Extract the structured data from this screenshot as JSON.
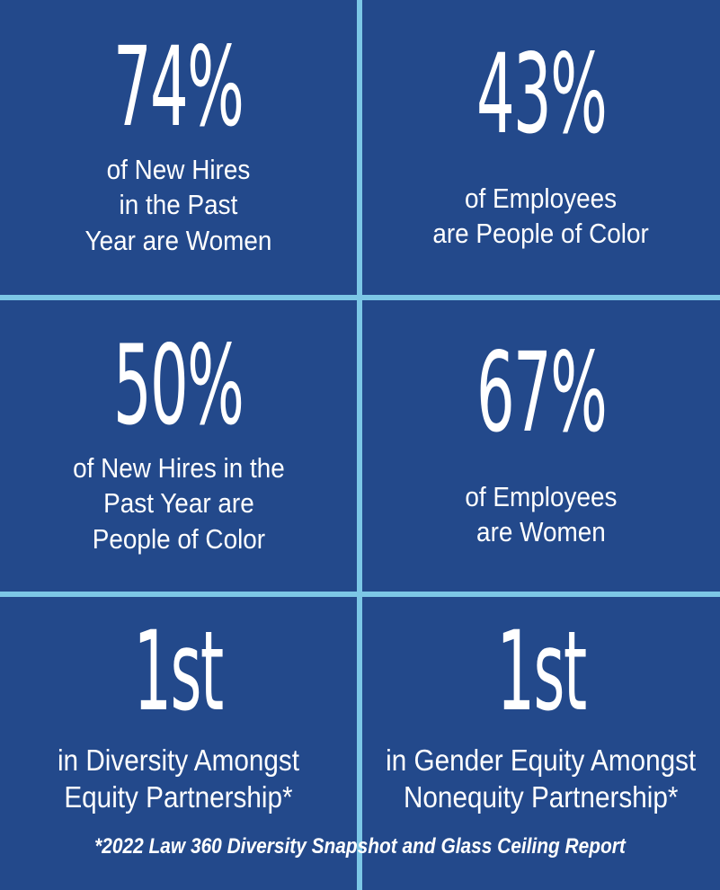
{
  "theme": {
    "background": "#23498B",
    "divider": "#7CC7E6",
    "text": "#FFFFFF"
  },
  "chart_data": {
    "type": "table",
    "items": [
      {
        "value": "74%",
        "label": "of New Hires in the Past Year are Women",
        "label_lines": [
          "of New Hires",
          "in the Past",
          "Year are Women"
        ]
      },
      {
        "value": "43%",
        "label": "of Employees are People of Color",
        "label_lines": [
          "of Employees",
          "are People of Color"
        ]
      },
      {
        "value": "50%",
        "label": "of New Hires in the Past Year are People of Color",
        "label_lines": [
          "of New Hires in the",
          "Past Year are",
          "People of Color"
        ]
      },
      {
        "value": "67%",
        "label": "of Employees are Women",
        "label_lines": [
          "of Employees",
          "are Women"
        ]
      },
      {
        "value": "1st",
        "label": "in Diversity Amongst Equity Partnership*",
        "label_lines": [
          "in Diversity Amongst",
          "Equity Partnership*"
        ]
      },
      {
        "value": "1st",
        "label": "in Gender Equity Amongst Nonequity Partnership*",
        "label_lines": [
          "in Gender Equity Amongst",
          "Nonequity Partnership*"
        ]
      }
    ],
    "footnote": "*2022 Law 360 Diversity Snapshot and Glass Ceiling Report"
  }
}
